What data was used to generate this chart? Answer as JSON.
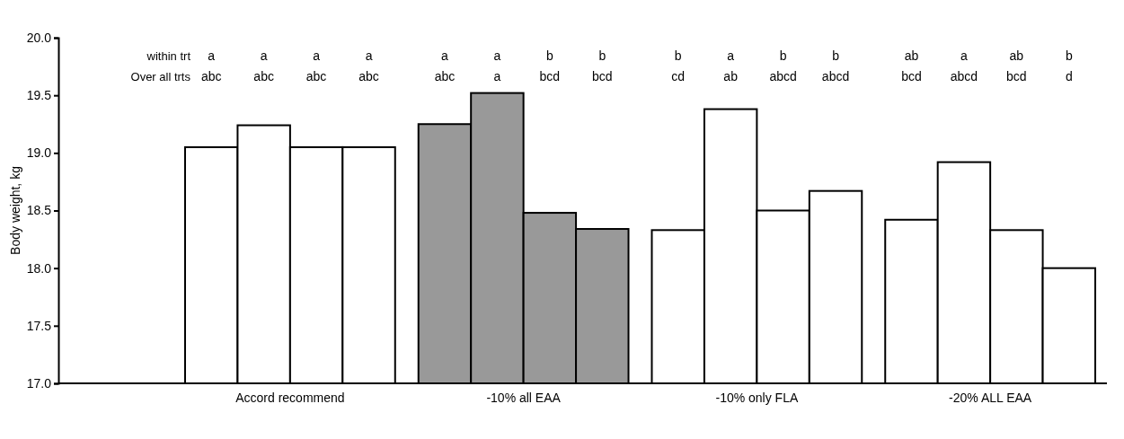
{
  "chart_data": {
    "type": "bar",
    "ylabel": "Body weight, kg",
    "categories": [
      "Accord recommend",
      "-10% all EAA",
      "-10% only FLA",
      "-20% ALL EAA"
    ],
    "series": [
      {
        "colors": [
          "#ffffff",
          "#999999",
          "#ffffff",
          "#ffffff"
        ],
        "values": [
          19.05,
          19.25,
          18.33,
          18.42
        ]
      },
      {
        "colors": [
          "#ffffff",
          "#999999",
          "#ffffff",
          "#ffffff"
        ],
        "values": [
          19.24,
          19.52,
          19.38,
          18.92
        ]
      },
      {
        "colors": [
          "#ffffff",
          "#999999",
          "#ffffff",
          "#ffffff"
        ],
        "values": [
          19.05,
          18.48,
          18.5,
          18.33
        ]
      },
      {
        "colors": [
          "#ffffff",
          "#999999",
          "#ffffff",
          "#ffffff"
        ],
        "values": [
          19.05,
          18.34,
          18.67,
          18.0
        ]
      }
    ],
    "ylim": [
      17.0,
      20.0
    ],
    "yticks": [
      {
        "value": 17,
        "label": "17.0"
      },
      {
        "value": 17.5,
        "label": "17.5"
      },
      {
        "value": 18,
        "label": "18.0"
      },
      {
        "value": 18.5,
        "label": "18.5"
      },
      {
        "value": 19,
        "label": "19.0"
      },
      {
        "value": 19.5,
        "label": "19.5"
      },
      {
        "value": 20,
        "label": "20.0"
      }
    ],
    "annotations": [
      "within trt",
      "Over all trts",
      "a\nabc",
      "a\nabc",
      "a\nabc",
      "a\nabc",
      "a\nabc",
      "a\na",
      "b\nbcd",
      "b\nbcd",
      "b\ncd",
      "a\nab",
      "b\nabcd",
      "b\nabcd",
      "ab\nbcd",
      "a\nabcd",
      "ab\nbcd",
      "b\nd"
    ]
  }
}
